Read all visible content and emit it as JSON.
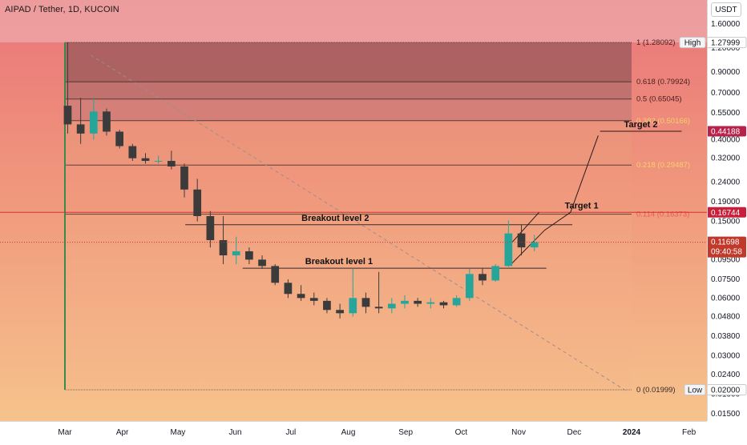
{
  "title": "AIPAD / Tether, 1D, KUCOIN",
  "currency_button": "USDT",
  "colors": {
    "up": "#26a69a",
    "down": "#3b3b3b",
    "target_line": "#d32f2f",
    "breakout_line": "#3a2a2a",
    "trend_line": "#9e8c8c"
  },
  "chart_data": {
    "type": "candlestick",
    "title": "AIPAD / Tether, 1D, KUCOIN",
    "scale": "log",
    "y_ticks": [
      "1.60000",
      "1.20000",
      "0.90000",
      "0.70000",
      "0.55000",
      "0.40000",
      "0.32000",
      "0.24000",
      "0.19000",
      "0.15000",
      "0.12000",
      "0.09500",
      "0.07500",
      "0.06000",
      "0.04800",
      "0.03800",
      "0.03000",
      "0.02400",
      "0.01900",
      "0.01500"
    ],
    "x_ticks": [
      "Mar",
      "Apr",
      "May",
      "Jun",
      "Jul",
      "Aug",
      "Sep",
      "Oct",
      "Nov",
      "Dec",
      "2024",
      "Feb"
    ],
    "x_tick_dates": [
      "2023-03-01",
      "2023-04-01",
      "2023-05-01",
      "2023-06-01",
      "2023-07-01",
      "2023-08-01",
      "2023-09-01",
      "2023-10-01",
      "2023-11-01",
      "2023-12-01",
      "2024-01-01",
      "2024-02-01"
    ],
    "fib_levels": [
      {
        "ratio": "1",
        "value": 1.28092,
        "label": "1 (1.28092)"
      },
      {
        "ratio": "0.618",
        "value": 0.79924,
        "label": "0.618 (0.79924)"
      },
      {
        "ratio": "0.5",
        "value": 0.65045,
        "label": "0.5 (0.65045)"
      },
      {
        "ratio": "0.382",
        "value": 0.50166,
        "label": "0.382 (0.50166)"
      },
      {
        "ratio": "0.218",
        "value": 0.29487,
        "label": "0.218 (0.29487)"
      },
      {
        "ratio": "0.114",
        "value": 0.16373,
        "label": "0.114 (0.16373)"
      },
      {
        "ratio": "0",
        "value": 0.01999,
        "label": "0 (0.01999)"
      }
    ],
    "fib_start_date": "2023-03-01",
    "fib_end_date": "2024-01-01",
    "annotations": [
      {
        "text": "Target 2",
        "value": 0.44188,
        "start_date": "2023-12-15",
        "end_date": "2024-01-28"
      },
      {
        "text": "Target 1",
        "value": 0.16744,
        "start_date": "2023-11-13",
        "end_date": "2023-12-27"
      },
      {
        "text": "Breakout level 2",
        "value": 0.1443,
        "start_date": "2023-05-05",
        "end_date": "2023-11-30"
      },
      {
        "text": "Breakout level 1",
        "value": 0.0857,
        "start_date": "2023-06-05",
        "end_date": "2023-11-16"
      }
    ],
    "price_badges": [
      {
        "label": "High",
        "value": "1.27999"
      },
      {
        "value": "0.44188"
      },
      {
        "value": "0.16744"
      },
      {
        "value": "0.11698",
        "sub": "09:40:58"
      },
      {
        "label": "Low",
        "value": "0.02000"
      }
    ],
    "last_price": 0.11698,
    "trend_line": {
      "from_date": "2023-03-15",
      "from_value": 1.1,
      "to_date": "2023-12-30",
      "to_value": 0.0195
    },
    "target_path": [
      {
        "date": "2023-10-28",
        "value": 0.09
      },
      {
        "date": "2023-11-15",
        "value": 0.135
      },
      {
        "date": "2023-11-29",
        "value": 0.1674
      },
      {
        "date": "2023-12-14",
        "value": 0.42
      }
    ],
    "ohlc_weekly": [
      {
        "date": "2023-02-27",
        "o": 0.6,
        "h": 1.28,
        "l": 0.43,
        "c": 0.48
      },
      {
        "date": "2023-03-06",
        "o": 0.48,
        "h": 0.66,
        "l": 0.38,
        "c": 0.43
      },
      {
        "date": "2023-03-13",
        "o": 0.43,
        "h": 0.66,
        "l": 0.4,
        "c": 0.56
      },
      {
        "date": "2023-03-20",
        "o": 0.56,
        "h": 0.58,
        "l": 0.42,
        "c": 0.44
      },
      {
        "date": "2023-03-27",
        "o": 0.44,
        "h": 0.45,
        "l": 0.36,
        "c": 0.37
      },
      {
        "date": "2023-04-03",
        "o": 0.37,
        "h": 0.38,
        "l": 0.31,
        "c": 0.32
      },
      {
        "date": "2023-04-10",
        "o": 0.32,
        "h": 0.34,
        "l": 0.3,
        "c": 0.31
      },
      {
        "date": "2023-04-17",
        "o": 0.31,
        "h": 0.33,
        "l": 0.3,
        "c": 0.31
      },
      {
        "date": "2023-04-24",
        "o": 0.31,
        "h": 0.35,
        "l": 0.28,
        "c": 0.29
      },
      {
        "date": "2023-05-01",
        "o": 0.29,
        "h": 0.3,
        "l": 0.2,
        "c": 0.22
      },
      {
        "date": "2023-05-08",
        "o": 0.22,
        "h": 0.25,
        "l": 0.15,
        "c": 0.16
      },
      {
        "date": "2023-05-15",
        "o": 0.16,
        "h": 0.17,
        "l": 0.11,
        "c": 0.12
      },
      {
        "date": "2023-05-22",
        "o": 0.12,
        "h": 0.16,
        "l": 0.09,
        "c": 0.1
      },
      {
        "date": "2023-05-29",
        "o": 0.1,
        "h": 0.125,
        "l": 0.09,
        "c": 0.105
      },
      {
        "date": "2023-06-05",
        "o": 0.105,
        "h": 0.11,
        "l": 0.09,
        "c": 0.095
      },
      {
        "date": "2023-06-12",
        "o": 0.095,
        "h": 0.1,
        "l": 0.085,
        "c": 0.088
      },
      {
        "date": "2023-06-19",
        "o": 0.088,
        "h": 0.09,
        "l": 0.07,
        "c": 0.072
      },
      {
        "date": "2023-06-26",
        "o": 0.072,
        "h": 0.075,
        "l": 0.06,
        "c": 0.063
      },
      {
        "date": "2023-07-03",
        "o": 0.063,
        "h": 0.07,
        "l": 0.058,
        "c": 0.06
      },
      {
        "date": "2023-07-10",
        "o": 0.06,
        "h": 0.064,
        "l": 0.055,
        "c": 0.058
      },
      {
        "date": "2023-07-17",
        "o": 0.058,
        "h": 0.06,
        "l": 0.05,
        "c": 0.052
      },
      {
        "date": "2023-07-24",
        "o": 0.052,
        "h": 0.056,
        "l": 0.047,
        "c": 0.05
      },
      {
        "date": "2023-07-31",
        "o": 0.05,
        "h": 0.085,
        "l": 0.048,
        "c": 0.06
      },
      {
        "date": "2023-08-07",
        "o": 0.06,
        "h": 0.064,
        "l": 0.05,
        "c": 0.054
      },
      {
        "date": "2023-08-14",
        "o": 0.054,
        "h": 0.082,
        "l": 0.05,
        "c": 0.053
      },
      {
        "date": "2023-08-21",
        "o": 0.053,
        "h": 0.06,
        "l": 0.05,
        "c": 0.056
      },
      {
        "date": "2023-08-28",
        "o": 0.056,
        "h": 0.062,
        "l": 0.053,
        "c": 0.058
      },
      {
        "date": "2023-09-04",
        "o": 0.058,
        "h": 0.06,
        "l": 0.054,
        "c": 0.056
      },
      {
        "date": "2023-09-11",
        "o": 0.056,
        "h": 0.06,
        "l": 0.053,
        "c": 0.057
      },
      {
        "date": "2023-09-18",
        "o": 0.057,
        "h": 0.058,
        "l": 0.053,
        "c": 0.055
      },
      {
        "date": "2023-09-25",
        "o": 0.055,
        "h": 0.062,
        "l": 0.054,
        "c": 0.06
      },
      {
        "date": "2023-10-02",
        "o": 0.06,
        "h": 0.085,
        "l": 0.058,
        "c": 0.08
      },
      {
        "date": "2023-10-09",
        "o": 0.08,
        "h": 0.086,
        "l": 0.07,
        "c": 0.074
      },
      {
        "date": "2023-10-16",
        "o": 0.074,
        "h": 0.09,
        "l": 0.073,
        "c": 0.088
      },
      {
        "date": "2023-10-23",
        "o": 0.088,
        "h": 0.152,
        "l": 0.087,
        "c": 0.13
      },
      {
        "date": "2023-10-30",
        "o": 0.13,
        "h": 0.145,
        "l": 0.1,
        "c": 0.11
      },
      {
        "date": "2023-11-06",
        "o": 0.11,
        "h": 0.128,
        "l": 0.105,
        "c": 0.117
      }
    ]
  }
}
